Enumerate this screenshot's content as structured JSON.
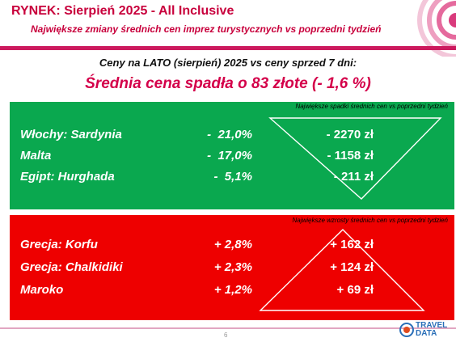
{
  "header": {
    "title": "RYNEK: Sierpień 2025 - All Inclusive",
    "subtitle": "Największe zmiany średnich cen imprez turystycznych vs poprzedni tydzień"
  },
  "summary": {
    "comparison": "Ceny na LATO (sierpień) 2025 vs ceny sprzed 7 dni:",
    "average_change": "Średnia cena spadła o 83 złote (- 1,6 %)"
  },
  "decreases": {
    "caption": "Największe spadki średnich cen vs poprzedni tydzień",
    "color": "#0aa84f",
    "rows": [
      {
        "destination": "Włochy: Sardynia",
        "percent": "-  21,0%",
        "amount": "- 2270 zł"
      },
      {
        "destination": "Malta",
        "percent": "-  17,0%",
        "amount": "- 1158 zł"
      },
      {
        "destination": "Egipt: Hurghada",
        "percent": "-  5,1%",
        "amount": "- 211 zł"
      }
    ]
  },
  "increases": {
    "caption": "Największe wzrosty średnich cen vs poprzedni tydzień",
    "color": "#ee0000",
    "rows": [
      {
        "destination": "Grecja: Korfu",
        "percent": "+ 2,8%",
        "amount": "+ 162 zł"
      },
      {
        "destination": "Grecja: Chalkidiki",
        "percent": "+ 2,3%",
        "amount": "+ 124 zł"
      },
      {
        "destination": "Maroko",
        "percent": "+ 1,2%",
        "amount": "+ 69 zł"
      }
    ]
  },
  "footer": {
    "page_number": "6",
    "logo_line1": "TRAVEL",
    "logo_line2": "DATA"
  }
}
